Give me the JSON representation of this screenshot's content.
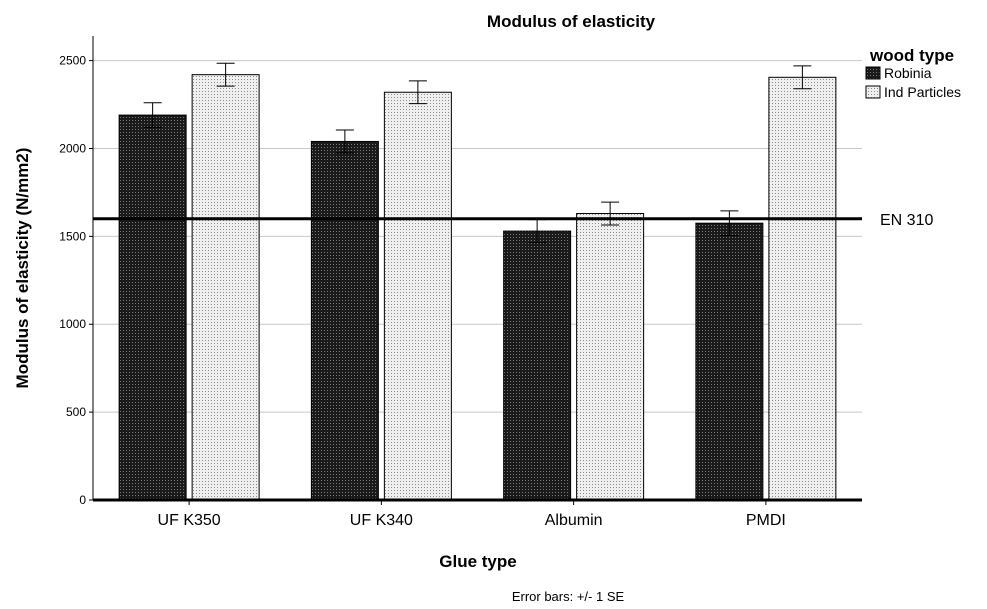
{
  "chart_data": {
    "type": "bar",
    "title": "Modulus of elasticity",
    "xlabel": "Glue type",
    "ylabel": "Modulus of elasticity (N/mm2)",
    "categories": [
      "UF K350",
      "UF K340",
      "Albumin",
      "PMDI"
    ],
    "ylim": [
      0,
      2640
    ],
    "yticks": [
      0,
      500,
      1000,
      1500,
      2000,
      2500
    ],
    "grid": true,
    "legend": {
      "title": "wood type",
      "position": "top-right"
    },
    "series": [
      {
        "name": "Robinia",
        "values": [
          2190,
          2040,
          1530,
          1575
        ],
        "error": [
          70,
          65,
          65,
          70
        ],
        "pattern": "dark-dots"
      },
      {
        "name": "Ind Particles",
        "values": [
          2420,
          2320,
          1630,
          2405
        ],
        "error": [
          65,
          65,
          65,
          65
        ],
        "pattern": "light-dots"
      }
    ],
    "reference_line": {
      "label": "EN 310",
      "value": 1600
    },
    "note": "Error bars: +/- 1 SE"
  }
}
